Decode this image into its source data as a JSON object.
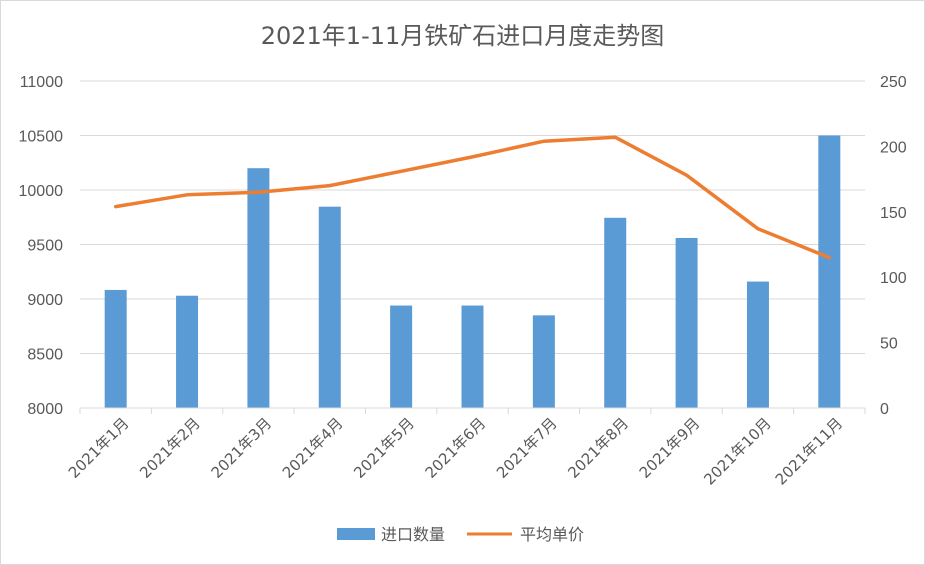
{
  "chart_data": {
    "type": "bar+line",
    "title": "2021年1-11月铁矿石进口月度走势图",
    "categories": [
      "2021年1月",
      "2021年2月",
      "2021年3月",
      "2021年4月",
      "2021年5月",
      "2021年6月",
      "2021年7月",
      "2021年8月",
      "2021年9月",
      "2021年10月",
      "2021年11月"
    ],
    "series": [
      {
        "name": "进口数量",
        "type": "bar",
        "axis": "left",
        "color": "#5b9bd5",
        "values": [
          9083,
          9030,
          10200,
          9847,
          8940,
          8940,
          8850,
          9745,
          9560,
          9160,
          10500
        ]
      },
      {
        "name": "平均单价",
        "type": "line",
        "axis": "right",
        "color": "#ed7d31",
        "values": [
          154,
          163,
          165,
          170,
          181,
          192,
          204,
          207,
          178,
          137,
          115
        ]
      }
    ],
    "y_left": {
      "min": 8000,
      "max": 11000,
      "ticks": [
        "8000",
        "8500",
        "9000",
        "9500",
        "10000",
        "10500",
        "11000"
      ]
    },
    "y_right": {
      "min": 0,
      "max": 250,
      "ticks": [
        "0",
        "50",
        "100",
        "150",
        "200",
        "250"
      ]
    },
    "grid": true,
    "legend_position": "bottom"
  }
}
